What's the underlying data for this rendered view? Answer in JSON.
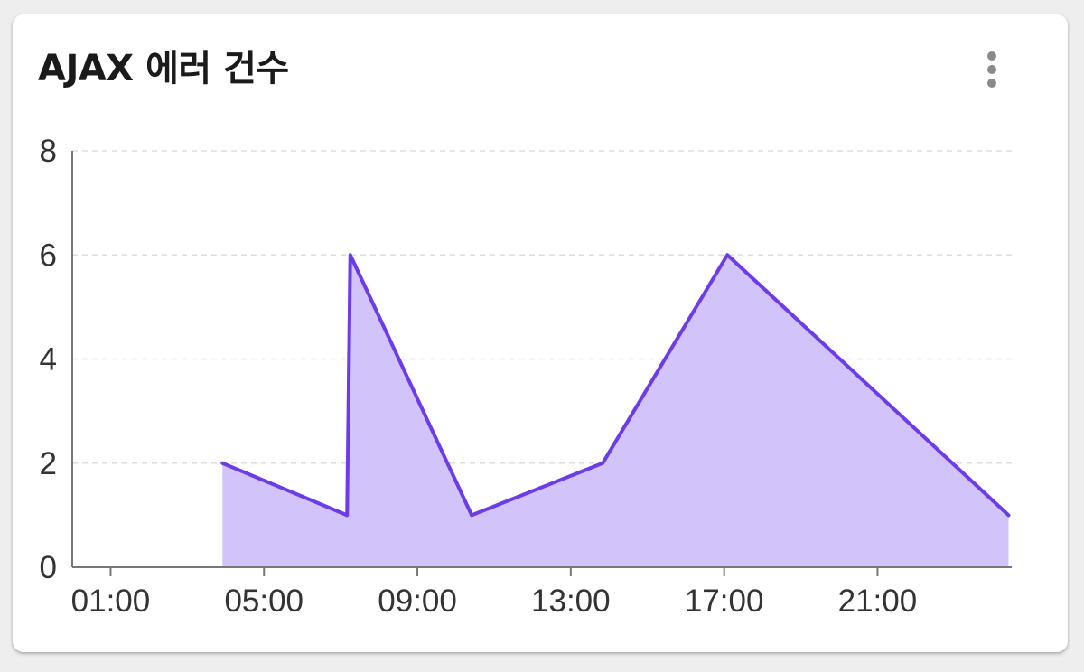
{
  "card": {
    "title": "AJAX 에러 건수",
    "menu_icon": "more-vert-icon"
  },
  "colors": {
    "line": "#6c3ce8",
    "area": "#d2c4fb",
    "grid": "#dddddd",
    "axis": "#777777"
  },
  "chart_data": {
    "type": "area",
    "title": "",
    "xlabel": "",
    "ylabel": "",
    "x_tick_labels": [
      "01:00",
      "05:00",
      "09:00",
      "13:00",
      "17:00",
      "21:00"
    ],
    "x_ticks_hours": [
      1,
      5,
      9,
      13,
      17,
      21
    ],
    "xlim_hours": [
      0,
      24.5
    ],
    "ylim": [
      0,
      8
    ],
    "y_ticks": [
      0,
      2,
      4,
      6,
      8
    ],
    "grid": true,
    "legend": "none",
    "series": [
      {
        "points": [
          {
            "x": "03:55",
            "y": 2
          },
          {
            "x": "07:10",
            "y": 1
          },
          {
            "x": "07:15",
            "y": 6
          },
          {
            "x": "10:25",
            "y": 1
          },
          {
            "x": "13:50",
            "y": 2
          },
          {
            "x": "17:05",
            "y": 6
          },
          {
            "x": "24:25",
            "y": 1
          }
        ]
      }
    ]
  }
}
